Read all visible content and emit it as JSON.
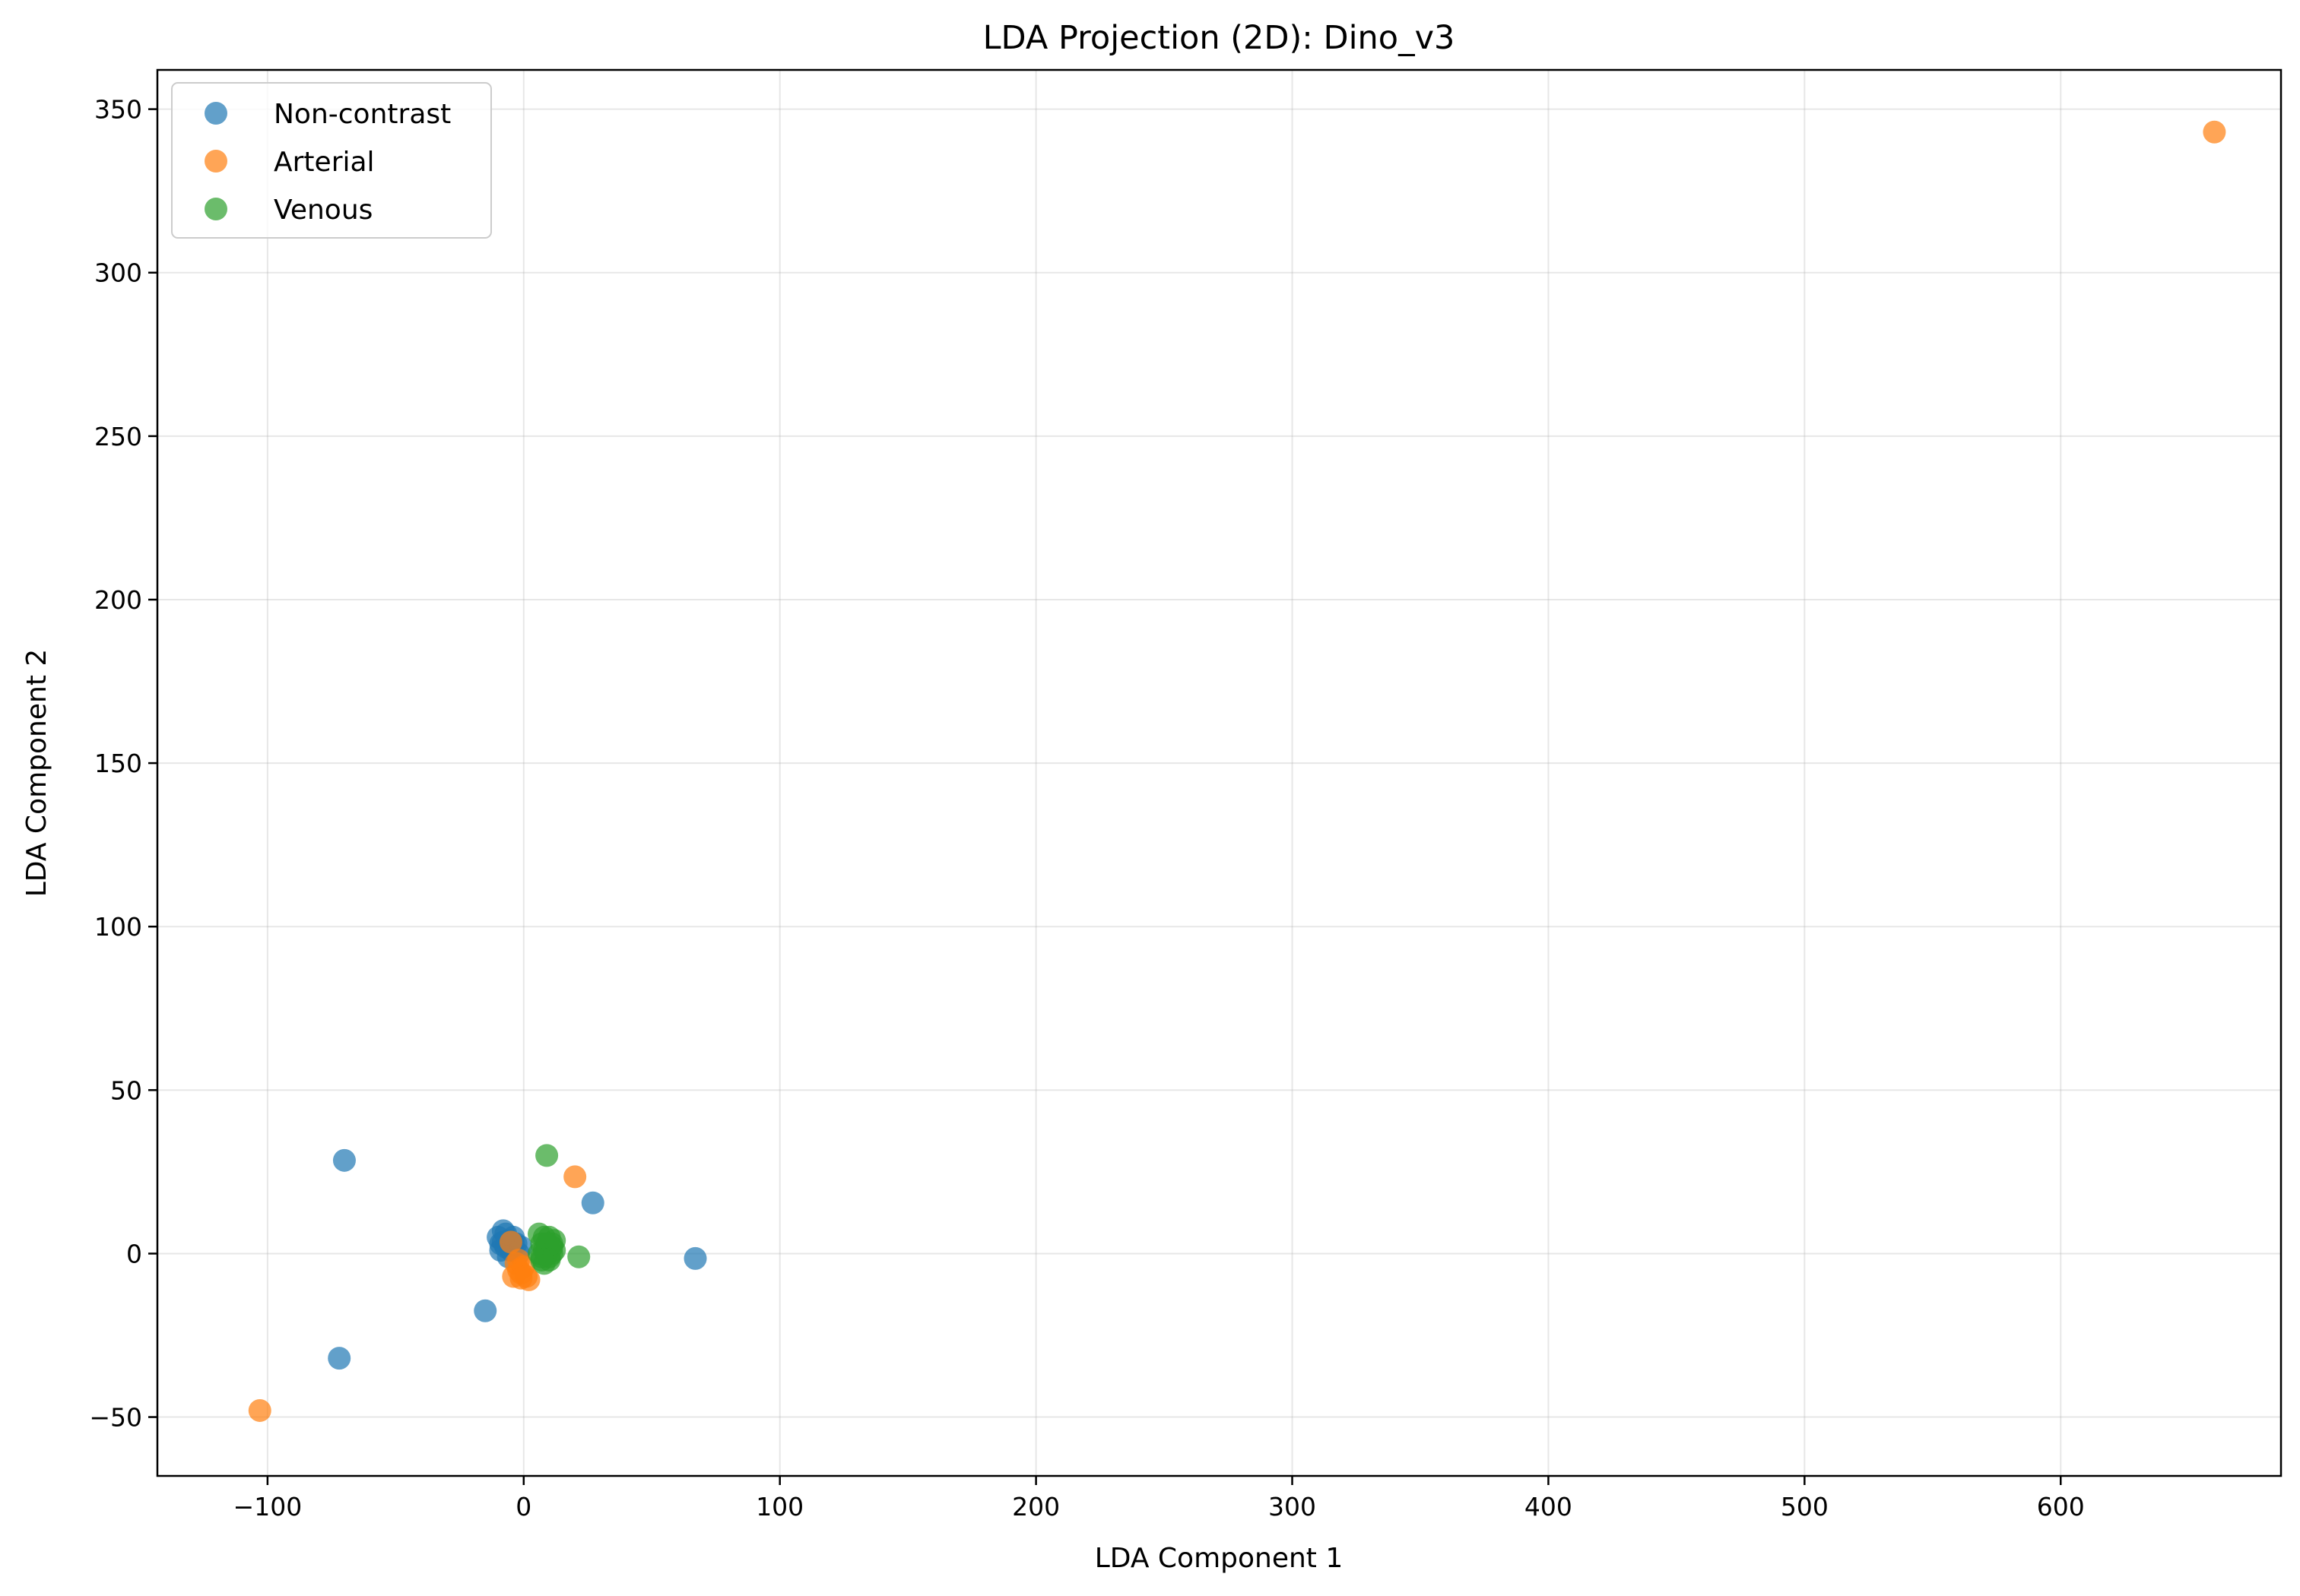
{
  "chart_data": {
    "type": "scatter",
    "title": "LDA Projection (2D): Dino_v3",
    "xlabel": "LDA Component 1",
    "ylabel": "LDA Component 2",
    "xlim": [
      -143,
      686
    ],
    "ylim": [
      -68,
      362
    ],
    "xticks": [
      -100,
      0,
      100,
      200,
      300,
      400,
      500,
      600
    ],
    "xtick_labels": [
      "−100",
      "0",
      "100",
      "200",
      "300",
      "400",
      "500",
      "600"
    ],
    "yticks": [
      -50,
      0,
      50,
      100,
      150,
      200,
      250,
      300,
      350
    ],
    "ytick_labels": [
      "−50",
      "0",
      "50",
      "100",
      "150",
      "200",
      "250",
      "300",
      "350"
    ],
    "grid": true,
    "legend_position": "top-left",
    "series": [
      {
        "name": "Non-contrast",
        "color": "#1f77b4",
        "points": [
          [
            -70,
            28.5
          ],
          [
            -72,
            -32
          ],
          [
            -15,
            -17.5
          ],
          [
            27,
            15.5
          ],
          [
            67,
            -1.5
          ],
          [
            -8,
            7
          ],
          [
            -10,
            5
          ],
          [
            -9,
            3
          ],
          [
            -7,
            2
          ],
          [
            -6,
            4
          ],
          [
            -5,
            1
          ],
          [
            -4,
            5
          ],
          [
            -3,
            3
          ],
          [
            -2,
            0
          ],
          [
            -1,
            2
          ],
          [
            -9,
            1
          ],
          [
            -7,
            6
          ],
          [
            -6,
            -1
          ],
          [
            -4,
            3
          ],
          [
            -8,
            3.5
          ]
        ]
      },
      {
        "name": "Arterial",
        "color": "#ff7f0e",
        "points": [
          [
            660,
            343
          ],
          [
            -103,
            -48
          ],
          [
            20,
            23.5
          ],
          [
            -5,
            3.5
          ],
          [
            -3,
            -3
          ],
          [
            -2,
            -5
          ],
          [
            -1,
            -6
          ],
          [
            0,
            -4
          ],
          [
            -4,
            -7
          ],
          [
            2,
            -8
          ],
          [
            -2,
            -2
          ],
          [
            1,
            -7
          ],
          [
            -1,
            -7.5
          ]
        ]
      },
      {
        "name": "Venous",
        "color": "#2ca02c",
        "points": [
          [
            9,
            30
          ],
          [
            21.5,
            -1
          ],
          [
            6,
            6
          ],
          [
            7,
            3
          ],
          [
            8,
            1
          ],
          [
            9,
            0
          ],
          [
            10,
            -1
          ],
          [
            11,
            2
          ],
          [
            12,
            4
          ],
          [
            8,
            -3
          ],
          [
            7,
            -2
          ],
          [
            10,
            5
          ],
          [
            11,
            0
          ],
          [
            9,
            3
          ],
          [
            6,
            0
          ],
          [
            12,
            1
          ],
          [
            8,
            5
          ],
          [
            10,
            -2
          ],
          [
            11,
            3
          ],
          [
            7,
            -1
          ]
        ]
      }
    ]
  }
}
